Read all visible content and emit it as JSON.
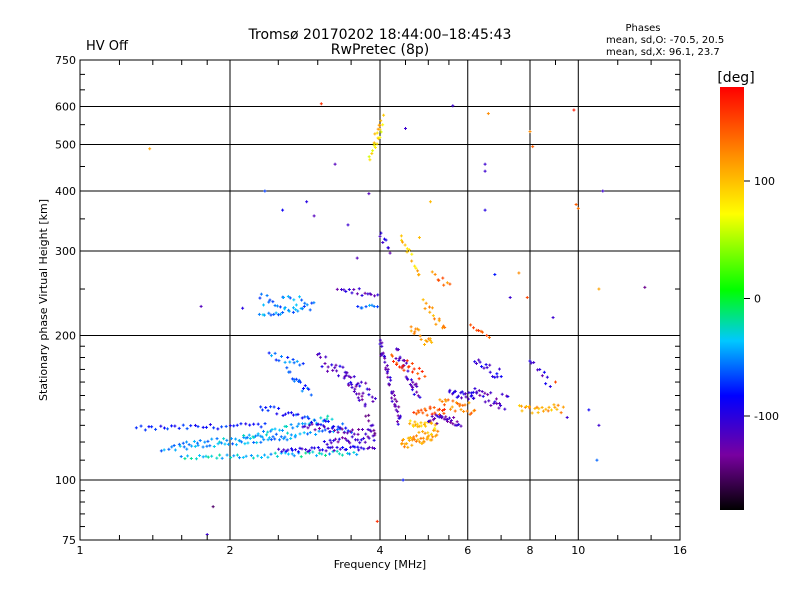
{
  "chart_data": {
    "type": "scatter",
    "title": "Tromsø 20170202 18:44:00–18:45:43",
    "subtitle": "RwPretec (8p)",
    "status_label": "HV Off",
    "status_color": "#cc0000",
    "phases": {
      "heading": "Phases",
      "line_o": "mean, sd,O: -70.5, 20.5",
      "line_x": "mean, sd,X:  96.1, 23.7"
    },
    "xlabel": "Frequency [MHz]",
    "ylabel": "Stationary phase Virtual Height [km]",
    "x_scale": "log",
    "y_scale": "log",
    "xlim": [
      1,
      16
    ],
    "ylim": [
      75,
      750
    ],
    "x_ticks": [
      1,
      2,
      4,
      6,
      8,
      10,
      16
    ],
    "y_ticks": [
      75,
      100,
      200,
      300,
      400,
      500,
      600,
      750
    ],
    "x_minor_ticks": [
      1.2,
      1.4,
      1.6,
      1.8,
      2.5,
      3,
      3.5,
      4.5,
      5,
      5.5,
      7,
      9,
      12,
      14
    ],
    "y_minor_ticks": [
      80,
      85,
      90,
      95,
      110,
      120,
      130,
      140,
      150,
      160,
      170,
      180,
      190,
      250,
      350,
      450,
      550,
      650,
      700
    ],
    "grid": true,
    "colorbar": {
      "label": "[deg]",
      "range": [
        -180,
        180
      ],
      "ticks": [
        100,
        0,
        -100
      ]
    },
    "series": [
      {
        "kind": "trace",
        "x0": 1.3,
        "x1": 2.35,
        "y0": 128,
        "y1": 130,
        "count": 34,
        "spread": 1.5,
        "phase": -80
      },
      {
        "kind": "trace",
        "x0": 1.45,
        "x1": 2.7,
        "y0": 116,
        "y1": 122,
        "count": 36,
        "spread": 1.2,
        "phase": -50
      },
      {
        "kind": "trace",
        "x0": 1.6,
        "x1": 3.6,
        "y0": 111,
        "y1": 114,
        "count": 52,
        "spread": 1.2,
        "phase": -35
      },
      {
        "kind": "trace",
        "x0": 1.55,
        "x1": 3.4,
        "y0": 119,
        "y1": 127,
        "count": 46,
        "spread": 1.2,
        "phase": -45
      },
      {
        "kind": "trace",
        "x0": 2.1,
        "x1": 3.2,
        "y0": 122,
        "y1": 135,
        "count": 32,
        "spread": 1.5,
        "phase": -40
      },
      {
        "kind": "trace",
        "x0": 2.5,
        "x1": 3.9,
        "y0": 115,
        "y1": 117,
        "count": 40,
        "spread": 1.2,
        "phase": -105
      },
      {
        "kind": "trace",
        "x0": 2.3,
        "x1": 3.5,
        "y0": 142,
        "y1": 128,
        "count": 34,
        "spread": 2.5,
        "phase": -75
      },
      {
        "kind": "trace",
        "x0": 2.8,
        "x1": 3.9,
        "y0": 130,
        "y1": 125,
        "count": 30,
        "spread": 2,
        "phase": -120
      },
      {
        "kind": "trace",
        "x0": 3.1,
        "x1": 3.9,
        "y0": 120,
        "y1": 122,
        "count": 24,
        "spread": 2,
        "phase": -115
      },
      {
        "kind": "trace",
        "x0": 2.6,
        "x1": 2.9,
        "y0": 170,
        "y1": 150,
        "count": 16,
        "spread": 4,
        "phase": -65
      },
      {
        "kind": "trace",
        "x0": 3.0,
        "x1": 3.9,
        "y0": 180,
        "y1": 150,
        "count": 36,
        "spread": 6,
        "phase": -110
      },
      {
        "kind": "trace",
        "x0": 2.4,
        "x1": 2.8,
        "y0": 182,
        "y1": 175,
        "count": 14,
        "spread": 3,
        "phase": -60
      },
      {
        "kind": "trace",
        "x0": 3.4,
        "x1": 3.9,
        "y0": 168,
        "y1": 130,
        "count": 24,
        "spread": 5,
        "phase": -125
      },
      {
        "kind": "trace",
        "x0": 2.3,
        "x1": 2.95,
        "y0": 237,
        "y1": 232,
        "count": 26,
        "spread": 8,
        "phase": -55
      },
      {
        "kind": "trace",
        "x0": 2.3,
        "x1": 2.8,
        "y0": 222,
        "y1": 226,
        "count": 18,
        "spread": 3,
        "phase": -50
      },
      {
        "kind": "trace",
        "x0": 3.3,
        "x1": 3.95,
        "y0": 248,
        "y1": 245,
        "count": 16,
        "spread": 4,
        "phase": -115
      },
      {
        "kind": "trace",
        "x0": 3.6,
        "x1": 3.95,
        "y0": 228,
        "y1": 230,
        "count": 8,
        "spread": 3,
        "phase": -60
      },
      {
        "kind": "trace",
        "x0": 4.0,
        "x1": 4.4,
        "y0": 195,
        "y1": 130,
        "count": 44,
        "spread": 6,
        "phase": -120
      },
      {
        "kind": "trace",
        "x0": 4.3,
        "x1": 4.8,
        "y0": 185,
        "y1": 150,
        "count": 30,
        "spread": 6,
        "phase": -115
      },
      {
        "kind": "trace",
        "x0": 4.4,
        "x1": 5.2,
        "y0": 118,
        "y1": 125,
        "count": 40,
        "spread": 3,
        "phase": 115
      },
      {
        "kind": "trace",
        "x0": 4.6,
        "x1": 5.2,
        "y0": 130,
        "y1": 128,
        "count": 26,
        "spread": 4,
        "phase": 95
      },
      {
        "kind": "trace",
        "x0": 4.7,
        "x1": 5.4,
        "y0": 138,
        "y1": 140,
        "count": 20,
        "spread": 3,
        "phase": 150
      },
      {
        "kind": "trace",
        "x0": 5.0,
        "x1": 5.8,
        "y0": 135,
        "y1": 132,
        "count": 28,
        "spread": 3,
        "phase": -120
      },
      {
        "kind": "trace",
        "x0": 5.3,
        "x1": 6.2,
        "y0": 145,
        "y1": 140,
        "count": 24,
        "spread": 4,
        "phase": 125
      },
      {
        "kind": "trace",
        "x0": 5.5,
        "x1": 6.2,
        "y0": 152,
        "y1": 150,
        "count": 20,
        "spread": 3,
        "phase": -110
      },
      {
        "kind": "trace",
        "x0": 4.2,
        "x1": 4.9,
        "y0": 180,
        "y1": 165,
        "count": 20,
        "spread": 5,
        "phase": 150
      },
      {
        "kind": "trace",
        "x0": 4.6,
        "x1": 5.1,
        "y0": 208,
        "y1": 190,
        "count": 16,
        "spread": 6,
        "phase": 120
      },
      {
        "kind": "trace",
        "x0": 4.9,
        "x1": 5.4,
        "y0": 235,
        "y1": 205,
        "count": 14,
        "spread": 6,
        "phase": 110
      },
      {
        "kind": "trace",
        "x0": 4.4,
        "x1": 4.8,
        "y0": 320,
        "y1": 270,
        "count": 14,
        "spread": 6,
        "phase": 95
      },
      {
        "kind": "trace",
        "x0": 3.8,
        "x1": 4.05,
        "y0": 470,
        "y1": 540,
        "count": 14,
        "spread": 10,
        "phase": 75
      },
      {
        "kind": "trace",
        "x0": 3.9,
        "x1": 4.05,
        "y0": 510,
        "y1": 570,
        "count": 8,
        "spread": 8,
        "phase": 100
      },
      {
        "kind": "trace",
        "x0": 4.0,
        "x1": 4.2,
        "y0": 325,
        "y1": 300,
        "count": 8,
        "spread": 6,
        "phase": -115
      },
      {
        "kind": "trace",
        "x0": 6.1,
        "x1": 7.2,
        "y0": 150,
        "y1": 145,
        "count": 26,
        "spread": 6,
        "phase": -115
      },
      {
        "kind": "trace",
        "x0": 6.2,
        "x1": 7.0,
        "y0": 175,
        "y1": 165,
        "count": 16,
        "spread": 5,
        "phase": -100
      },
      {
        "kind": "trace",
        "x0": 7.6,
        "x1": 9.3,
        "y0": 140,
        "y1": 141,
        "count": 24,
        "spread": 3,
        "phase": 110
      },
      {
        "kind": "trace",
        "x0": 8.0,
        "x1": 8.8,
        "y0": 175,
        "y1": 160,
        "count": 10,
        "spread": 5,
        "phase": -110
      },
      {
        "kind": "trace",
        "x0": 6.1,
        "x1": 6.6,
        "y0": 210,
        "y1": 200,
        "count": 8,
        "spread": 3,
        "phase": 150
      },
      {
        "kind": "trace",
        "x0": 5.1,
        "x1": 5.5,
        "y0": 268,
        "y1": 255,
        "count": 8,
        "spread": 4,
        "phase": 130
      },
      {
        "kind": "points",
        "pts": [
          [
            1.38,
            490,
            110
          ],
          [
            1.75,
            230,
            -120
          ],
          [
            1.85,
            88,
            -150
          ],
          [
            2.12,
            228,
            -100
          ],
          [
            2.35,
            400,
            -70
          ],
          [
            2.55,
            365,
            -90
          ],
          [
            2.85,
            380,
            -100
          ],
          [
            2.95,
            355,
            -120
          ],
          [
            3.05,
            608,
            160
          ],
          [
            3.25,
            455,
            -120
          ],
          [
            3.45,
            340,
            -110
          ],
          [
            3.6,
            290,
            -120
          ],
          [
            3.8,
            395,
            -120
          ],
          [
            3.95,
            82,
            160
          ],
          [
            4.45,
            100,
            -80
          ],
          [
            4.5,
            540,
            -110
          ],
          [
            4.8,
            320,
            100
          ],
          [
            5.05,
            380,
            100
          ],
          [
            5.6,
            602,
            -110
          ],
          [
            6.5,
            455,
            -110
          ],
          [
            6.5,
            440,
            -110
          ],
          [
            6.6,
            580,
            120
          ],
          [
            6.5,
            365,
            -100
          ],
          [
            6.8,
            268,
            -80
          ],
          [
            7.3,
            240,
            -110
          ],
          [
            7.6,
            270,
            120
          ],
          [
            7.9,
            240,
            150
          ],
          [
            8.0,
            532,
            120
          ],
          [
            8.1,
            495,
            140
          ],
          [
            8.9,
            218,
            -110
          ],
          [
            9.5,
            135,
            -110
          ],
          [
            9.8,
            590,
            170
          ],
          [
            9.9,
            375,
            140
          ],
          [
            10.0,
            368,
            130
          ],
          [
            10.5,
            140,
            -90
          ],
          [
            11.0,
            250,
            110
          ],
          [
            11.2,
            400,
            -110
          ],
          [
            13.6,
            252,
            -140
          ],
          [
            11.0,
            130,
            -110
          ],
          [
            10.9,
            110,
            -60
          ],
          [
            9.0,
            160,
            150
          ],
          [
            1.8,
            77,
            -110
          ]
        ]
      }
    ]
  }
}
